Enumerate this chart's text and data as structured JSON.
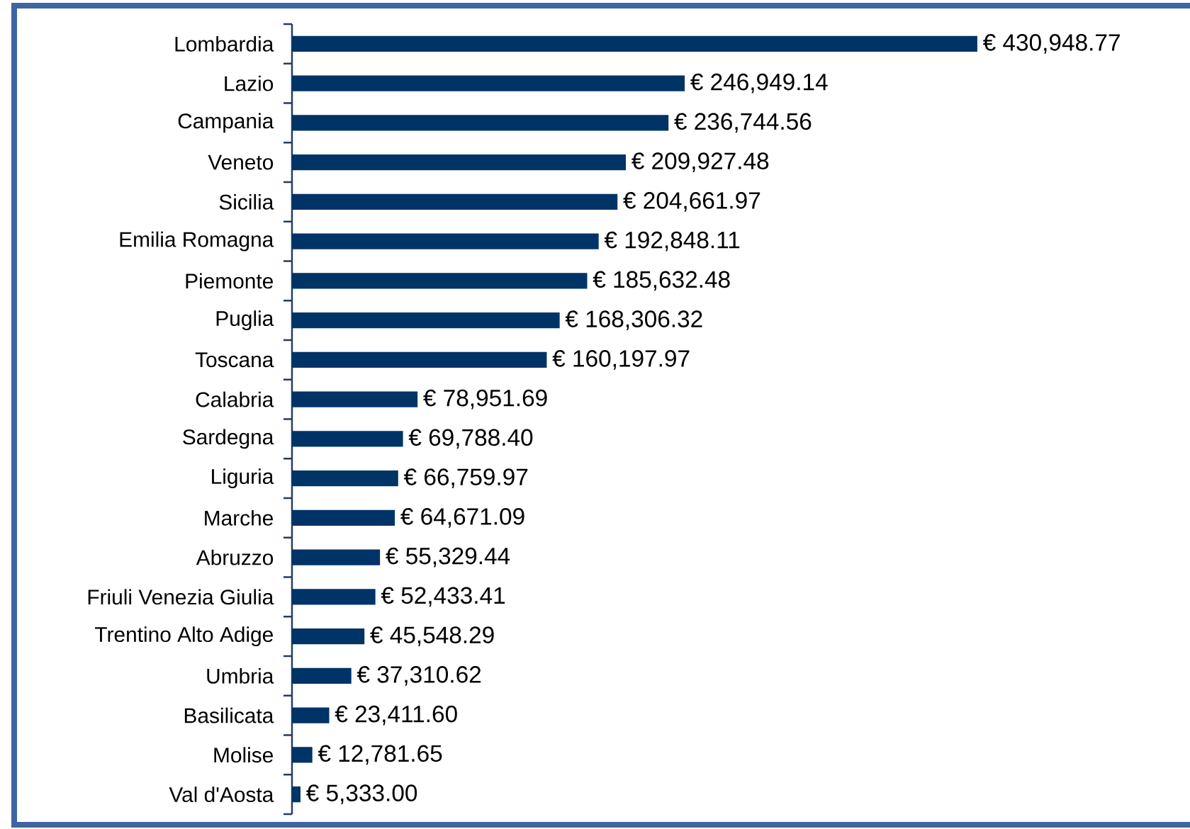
{
  "chart_data": {
    "type": "bar",
    "orientation": "horizontal",
    "categories": [
      "Lombardia",
      "Lazio",
      "Campania",
      "Veneto",
      "Sicilia",
      "Emilia Romagna",
      "Piemonte",
      "Puglia",
      "Toscana",
      "Calabria",
      "Sardegna",
      "Liguria",
      "Marche",
      "Abruzzo",
      "Friuli Venezia Giulia",
      "Trentino Alto Adige",
      "Umbria",
      "Basilicata",
      "Molise",
      "Val d'Aosta"
    ],
    "values": [
      430948.77,
      246949.14,
      236744.56,
      209927.48,
      204661.97,
      192848.11,
      185632.48,
      168306.32,
      160197.97,
      78951.69,
      69788.4,
      66759.97,
      64671.09,
      55329.44,
      52433.41,
      45548.29,
      37310.62,
      23411.6,
      12781.65,
      5333.0
    ],
    "value_labels": [
      "€ 430,948.77",
      "€ 246,949.14",
      "€ 236,744.56",
      "€ 209,927.48",
      "€ 204,661.97",
      "€ 192,848.11",
      "€ 185,632.48",
      "€ 168,306.32",
      "€ 160,197.97",
      "€ 78,951.69",
      "€ 69,788.40",
      "€ 66,759.97",
      "€ 64,671.09",
      "€ 55,329.44",
      "€ 52,433.41",
      "€ 45,548.29",
      "€ 37,310.62",
      "€ 23,411.60",
      "€ 12,781.65",
      "€ 5,333.00"
    ],
    "color": "#003366",
    "tick_labels": "y"
  }
}
